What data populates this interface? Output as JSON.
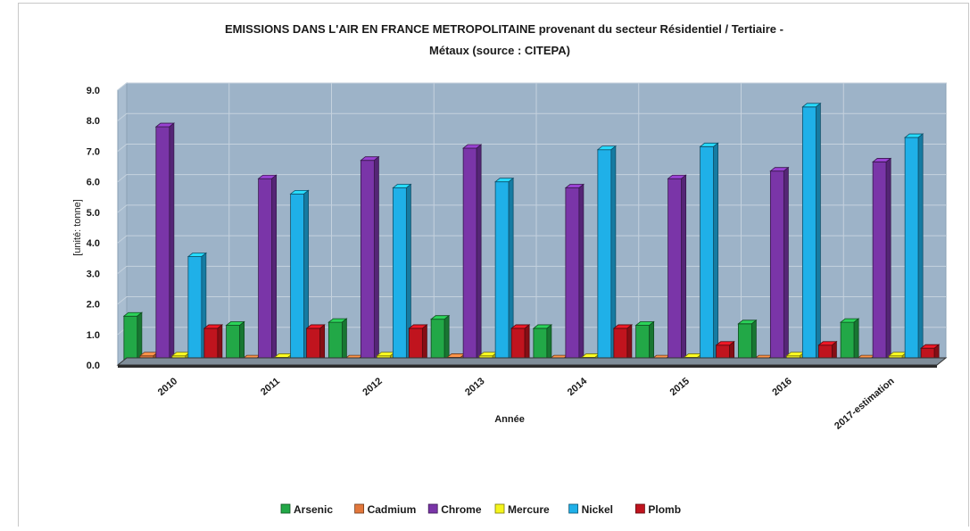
{
  "chart_data": {
    "type": "bar",
    "title_line1": "EMISSIONS DANS L'AIR EN FRANCE METROPOLITAINE provenant du secteur Résidentiel / Tertiaire -",
    "title_line2": "Métaux (source : CITEPA)",
    "xlabel": "Année",
    "ylabel": "[unité: tonne]",
    "ylim": [
      0,
      9
    ],
    "yticks": [
      "0.0",
      "1.0",
      "2.0",
      "3.0",
      "4.0",
      "5.0",
      "6.0",
      "7.0",
      "8.0",
      "9.0"
    ],
    "categories": [
      "2010",
      "2011",
      "2012",
      "2013",
      "2014",
      "2015",
      "2016",
      "2017-estimation"
    ],
    "series": [
      {
        "name": "Arsenic",
        "color": "#22a847",
        "values": [
          1.6,
          1.3,
          1.4,
          1.5,
          1.2,
          1.3,
          1.35,
          1.4
        ]
      },
      {
        "name": "Cadmium",
        "color": "#e2773b",
        "values": [
          0.3,
          0.2,
          0.2,
          0.25,
          0.2,
          0.2,
          0.2,
          0.2
        ]
      },
      {
        "name": "Chrome",
        "color": "#7a35a8",
        "values": [
          7.8,
          6.1,
          6.7,
          7.1,
          5.8,
          6.1,
          6.35,
          6.65
        ]
      },
      {
        "name": "Mercure",
        "color": "#f4f41c",
        "values": [
          0.3,
          0.25,
          0.3,
          0.3,
          0.25,
          0.25,
          0.3,
          0.3
        ]
      },
      {
        "name": "Nickel",
        "color": "#1fb0e8",
        "values": [
          3.55,
          5.6,
          5.8,
          6.0,
          7.05,
          7.15,
          8.45,
          7.45
        ]
      },
      {
        "name": "Plomb",
        "color": "#c0141e",
        "values": [
          1.2,
          1.2,
          1.2,
          1.2,
          1.2,
          0.65,
          0.65,
          0.55
        ]
      }
    ],
    "grid": true,
    "legend": "bottom"
  }
}
